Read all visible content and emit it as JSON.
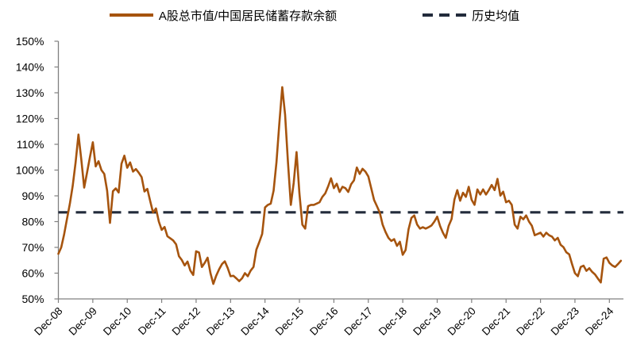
{
  "chart_data": {
    "type": "line",
    "title": "",
    "frequency": "monthly",
    "x_start": "Dec-08",
    "x_end": "Apr-25",
    "x_tick_labels": [
      "Dec-08",
      "Dec-09",
      "Dec-10",
      "Dec-11",
      "Dec-12",
      "Dec-13",
      "Dec-14",
      "Dec-15",
      "Dec-16",
      "Dec-17",
      "Dec-18",
      "Dec-19",
      "Dec-20",
      "Dec-21",
      "Dec-22",
      "Dec-23",
      "Dec-24"
    ],
    "ylim": [
      50,
      150
    ],
    "y_tick_step": 10,
    "y_unit": "%",
    "grid": false,
    "legend_position": "top",
    "axis_color": "#808080",
    "text_color": "#000000",
    "series": [
      {
        "name": "A股总市值/中国居民储蓄存款余额",
        "style": "solid",
        "color": "#A6540E",
        "monthly_values_pct": [
          67.5,
          70,
          75,
          81,
          87,
          94,
          103,
          113.8,
          104,
          93.2,
          99,
          105,
          110.8,
          101.4,
          103.4,
          100,
          98.5,
          92,
          79.5,
          91.8,
          92.9,
          91.3,
          102.5,
          105.6,
          100.9,
          103,
          99.4,
          100.4,
          99,
          97.3,
          91.7,
          92.7,
          88,
          83.5,
          85.1,
          80,
          76.8,
          77.9,
          74.3,
          73.5,
          72.7,
          71.2,
          66.6,
          65.1,
          63,
          64.5,
          61,
          59.3,
          68.5,
          68,
          62.4,
          64,
          66,
          60,
          55.8,
          59,
          61.5,
          63.5,
          64.6,
          62,
          58.8,
          59,
          58,
          56.9,
          58,
          60,
          58.8,
          61,
          62.4,
          69.1,
          72,
          75.2,
          85.5,
          86.5,
          87,
          92,
          103,
          118,
          132.2,
          121.4,
          103,
          86.5,
          95,
          107,
          91,
          78.8,
          77.3,
          86,
          86.5,
          86.5,
          87,
          87.5,
          89.6,
          91,
          93.7,
          96.8,
          93,
          94.7,
          91.5,
          93.5,
          93,
          91.5,
          94.5,
          96,
          101,
          98.5,
          100.5,
          99.4,
          97.5,
          93,
          88.4,
          86,
          83.5,
          78.8,
          76,
          73.7,
          72.5,
          73.2,
          70.6,
          72.2,
          67.1,
          69,
          77,
          81.4,
          82.4,
          78.9,
          77.3,
          77.8,
          77.3,
          77.8,
          78.5,
          80,
          81.9,
          78.3,
          75.7,
          73.7,
          78.3,
          81,
          88.6,
          92.2,
          88.1,
          91.2,
          89.6,
          93.5,
          88.5,
          86.5,
          92.5,
          90.5,
          92.5,
          90.5,
          92.2,
          94.2,
          92.2,
          96.6,
          90.1,
          91.6,
          87.5,
          88.1,
          86.5,
          78.8,
          77.3,
          81.9,
          80.9,
          82.4,
          80,
          78.4,
          74.7,
          75.2,
          75.7,
          74.2,
          75.7,
          74.7,
          74.2,
          72.7,
          73.7,
          71,
          70.1,
          68.1,
          67.3,
          63.5,
          60,
          58.8,
          62.4,
          62.9,
          60.9,
          61.9,
          60.5,
          59.5,
          57.9,
          56.4,
          65.6,
          66.1,
          64,
          63,
          62.4,
          63.5,
          64.8
        ]
      },
      {
        "name": "历史均值",
        "style": "dashed",
        "color": "#222B3B",
        "value_pct": 83.6
      }
    ]
  }
}
